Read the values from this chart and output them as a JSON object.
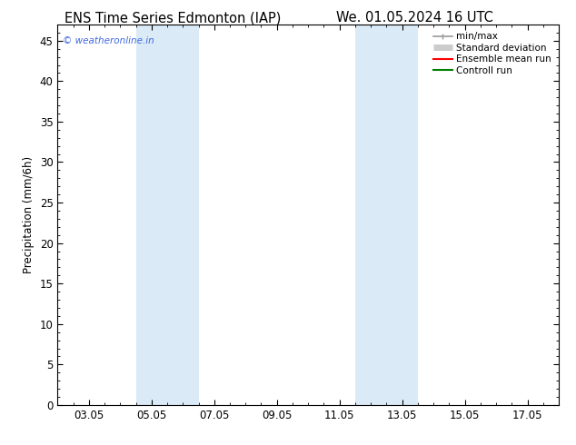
{
  "title_left": "ENS Time Series Edmonton (IAP)",
  "title_right": "We. 01.05.2024 16 UTC",
  "ylabel": "Precipitation (mm/6h)",
  "xlabel": "",
  "ylim": [
    0,
    47
  ],
  "yticks": [
    0,
    5,
    10,
    15,
    20,
    25,
    30,
    35,
    40,
    45
  ],
  "xtick_labels": [
    "03.05",
    "05.05",
    "07.05",
    "09.05",
    "11.05",
    "13.05",
    "15.05",
    "17.05"
  ],
  "xtick_positions": [
    1.0,
    3.0,
    5.0,
    7.0,
    9.0,
    11.0,
    13.0,
    15.0
  ],
  "xlim": [
    0.0,
    16.0
  ],
  "shaded_bands": [
    {
      "x_start": 2.5,
      "x_end": 4.5,
      "color": "#daeaf7"
    },
    {
      "x_start": 9.5,
      "x_end": 11.5,
      "color": "#daeaf7"
    }
  ],
  "background_color": "#ffffff",
  "plot_bg_color": "#ffffff",
  "legend_items": [
    {
      "label": "min/max",
      "color": "#999999",
      "lw": 1.2
    },
    {
      "label": "Standard deviation",
      "color": "#cccccc",
      "lw": 5
    },
    {
      "label": "Ensemble mean run",
      "color": "#ff0000",
      "lw": 1.5
    },
    {
      "label": "Controll run",
      "color": "#008000",
      "lw": 1.5
    }
  ],
  "watermark_text": "© weatheronline.in",
  "watermark_color": "#4169e1",
  "title_fontsize": 10.5,
  "axis_label_fontsize": 8.5,
  "tick_fontsize": 8.5,
  "legend_fontsize": 7.5
}
